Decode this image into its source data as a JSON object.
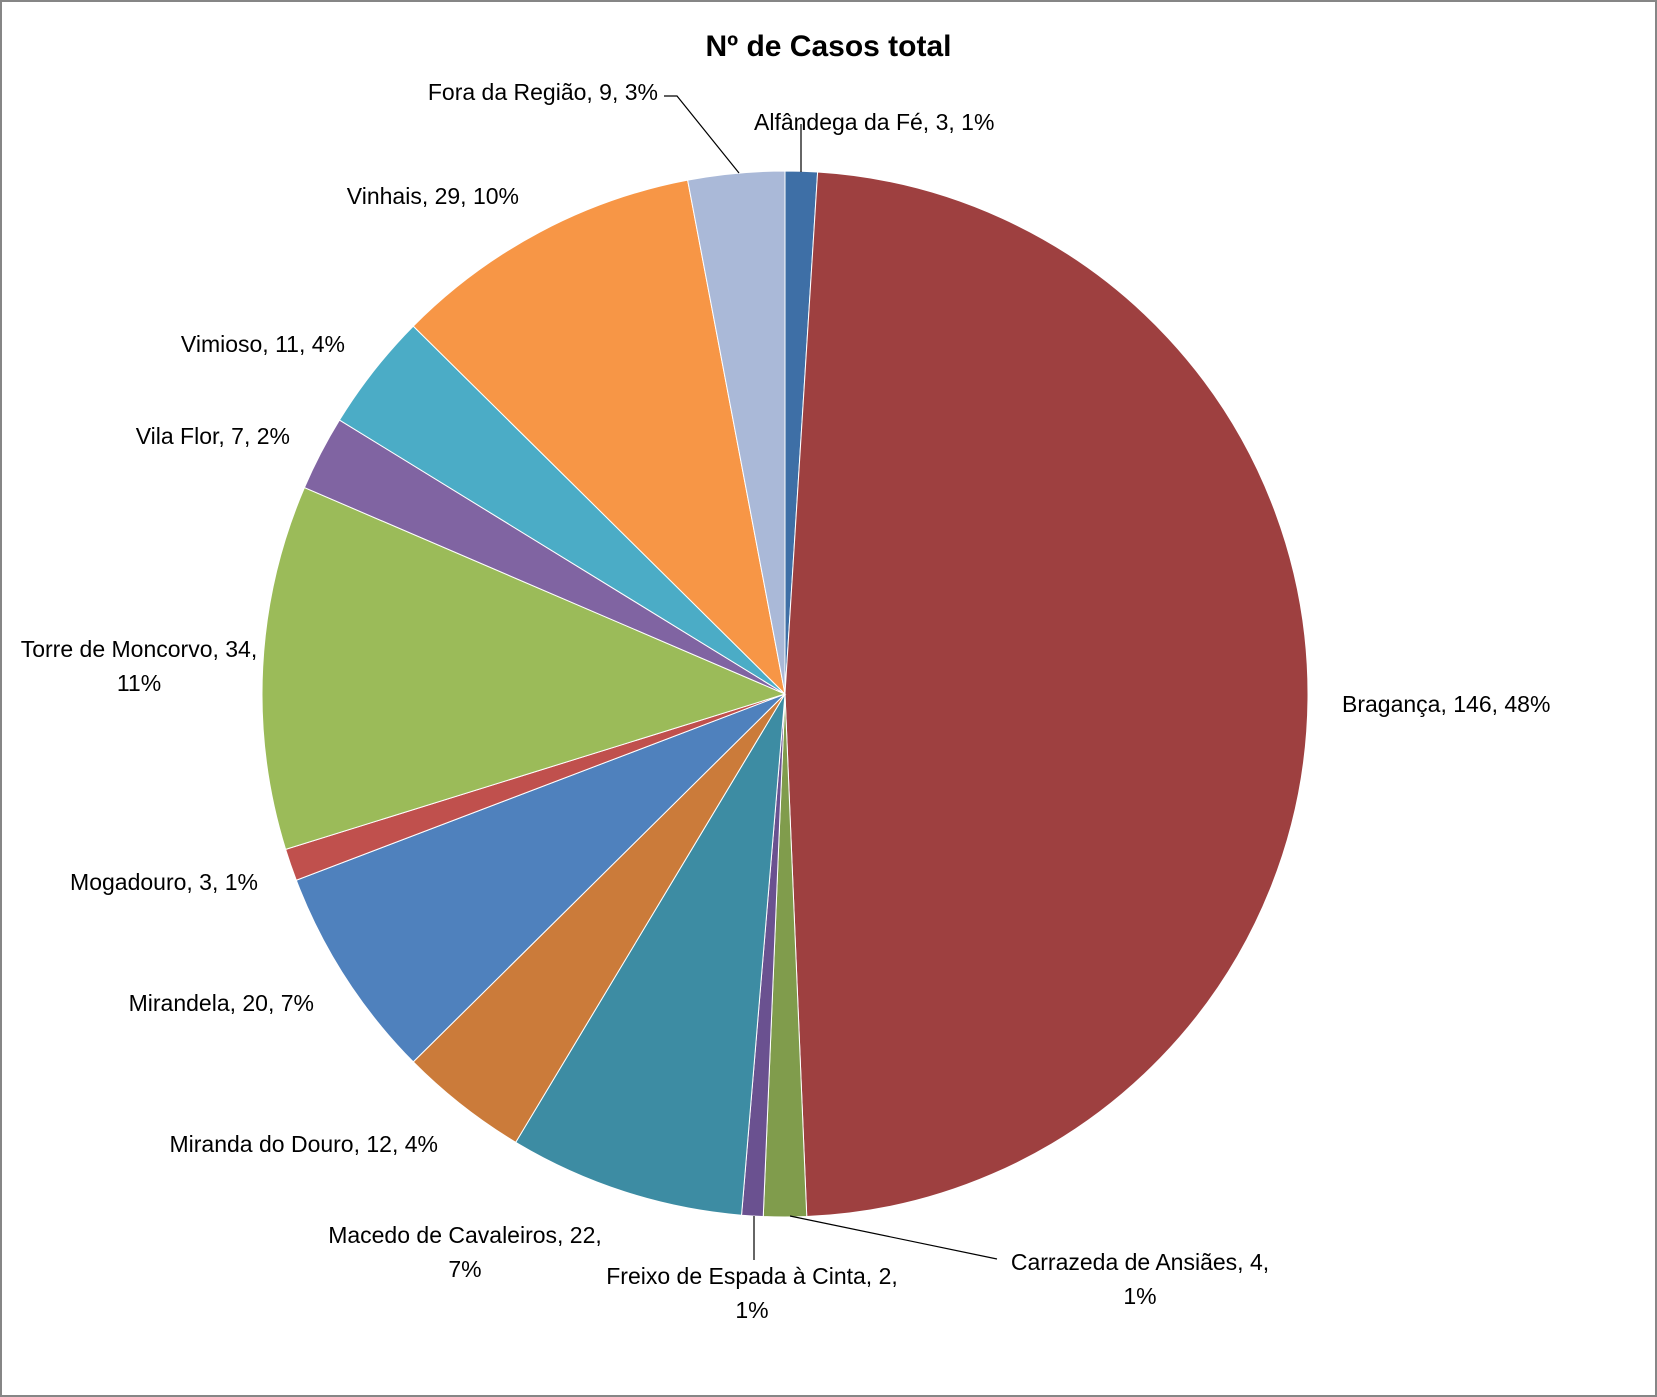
{
  "chart_data": {
    "type": "pie",
    "title": "Nº de Casos total",
    "slices": [
      {
        "label": "Alfândega da Fé",
        "value": 3,
        "percent": "1%",
        "color": "#3E6FA6",
        "text": "Alfândega da Fé, 3, 1%"
      },
      {
        "label": "Bragança",
        "value": 146,
        "percent": "48%",
        "color": "#9E4040",
        "text": "Bragança, 146, 48%"
      },
      {
        "label": "Carrazeda de Ansiães",
        "value": 4,
        "percent": "1%",
        "color": "#809C4C",
        "text": "Carrazeda de Ansiães, 4, 1%"
      },
      {
        "label": "Freixo de Espada à Cinta",
        "value": 2,
        "percent": "1%",
        "color": "#6A5190",
        "text": "Freixo de Espada à Cinta, 2, 1%"
      },
      {
        "label": "Macedo de Cavaleiros",
        "value": 22,
        "percent": "7%",
        "color": "#3D8CA3",
        "text": "Macedo de Cavaleiros, 22, 7%"
      },
      {
        "label": "Miranda do Douro",
        "value": 12,
        "percent": "4%",
        "color": "#CB7B3A",
        "text": "Miranda do Douro, 12, 4%"
      },
      {
        "label": "Mirandela",
        "value": 20,
        "percent": "7%",
        "color": "#4F81BD",
        "text": "Mirandela, 20, 7%"
      },
      {
        "label": "Mogadouro",
        "value": 3,
        "percent": "1%",
        "color": "#C0504D",
        "text": "Mogadouro, 3, 1%"
      },
      {
        "label": "Torre de Moncorvo",
        "value": 34,
        "percent": "11%",
        "color": "#9BBB59",
        "text": "Torre de Moncorvo, 34, 11%"
      },
      {
        "label": "Vila Flor",
        "value": 7,
        "percent": "2%",
        "color": "#8064A2",
        "text": "Vila Flor, 7, 2%"
      },
      {
        "label": "Vimioso",
        "value": 11,
        "percent": "4%",
        "color": "#4BACC6",
        "text": "Vimioso, 11, 4%"
      },
      {
        "label": "Vinhais",
        "value": 29,
        "percent": "10%",
        "color": "#F79646",
        "text": "Vinhais, 29, 10%"
      },
      {
        "label": "Fora da Região",
        "value": 9,
        "percent": "3%",
        "color": "#AAB9D8",
        "text": "Fora da Região, 9, 3%"
      }
    ]
  }
}
